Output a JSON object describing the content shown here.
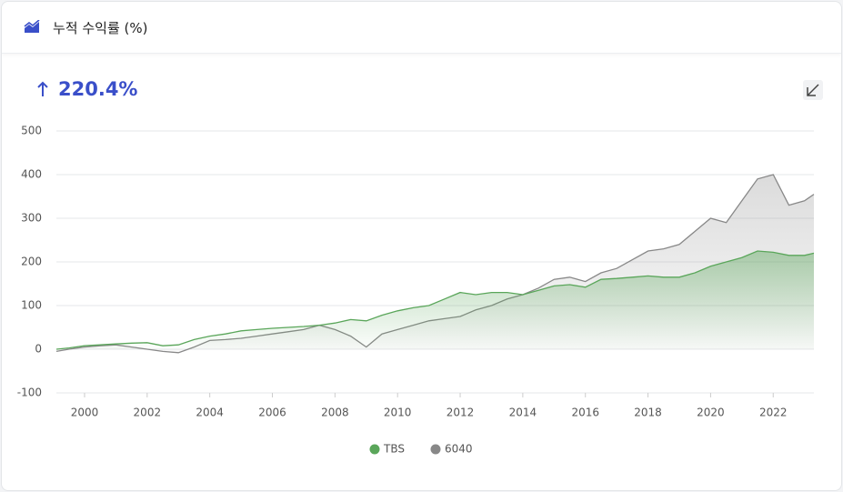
{
  "header": {
    "title": "누적 수익률 (%)"
  },
  "headline": "220.4%",
  "chart_data": {
    "type": "line",
    "x": [
      1999.1,
      1999.5,
      2000,
      2000.5,
      2001,
      2001.5,
      2002,
      2002.5,
      2003,
      2003.5,
      2004,
      2004.5,
      2005,
      2005.5,
      2006,
      2006.5,
      2007,
      2007.5,
      2008,
      2008.5,
      2009,
      2009.5,
      2010,
      2010.5,
      2011,
      2011.5,
      2012,
      2012.5,
      2013,
      2013.5,
      2014,
      2014.5,
      2015,
      2015.5,
      2016,
      2016.5,
      2017,
      2017.5,
      2018,
      2018.5,
      2019,
      2019.5,
      2020,
      2020.5,
      2021,
      2021.5,
      2022,
      2022.5,
      2023,
      2023.3
    ],
    "series": [
      {
        "name": "TBS",
        "color": "#5aa65a",
        "values": [
          0,
          3,
          8,
          10,
          12,
          14,
          15,
          8,
          10,
          22,
          30,
          35,
          42,
          45,
          48,
          50,
          52,
          55,
          60,
          68,
          65,
          78,
          88,
          95,
          100,
          115,
          130,
          125,
          130,
          130,
          125,
          135,
          145,
          148,
          142,
          160,
          162,
          165,
          168,
          165,
          165,
          175,
          190,
          200,
          210,
          225,
          222,
          215,
          215,
          220
        ]
      },
      {
        "name": "6040",
        "color": "#888888",
        "values": [
          -5,
          0,
          5,
          8,
          10,
          5,
          0,
          -5,
          -8,
          5,
          20,
          22,
          25,
          30,
          35,
          40,
          45,
          55,
          45,
          30,
          5,
          35,
          45,
          55,
          65,
          70,
          75,
          90,
          100,
          115,
          125,
          140,
          160,
          165,
          155,
          175,
          185,
          205,
          225,
          230,
          240,
          270,
          300,
          290,
          340,
          390,
          400,
          330,
          340,
          355
        ]
      }
    ],
    "xlim": [
      1999.1,
      2023.3
    ],
    "xticks": [
      2000,
      2002,
      2004,
      2006,
      2008,
      2010,
      2012,
      2014,
      2016,
      2018,
      2020,
      2022
    ],
    "ylim": [
      -100,
      500
    ],
    "yticks": [
      -100,
      0,
      100,
      200,
      300,
      400,
      500
    ],
    "grid": true,
    "legend": "bottom"
  }
}
